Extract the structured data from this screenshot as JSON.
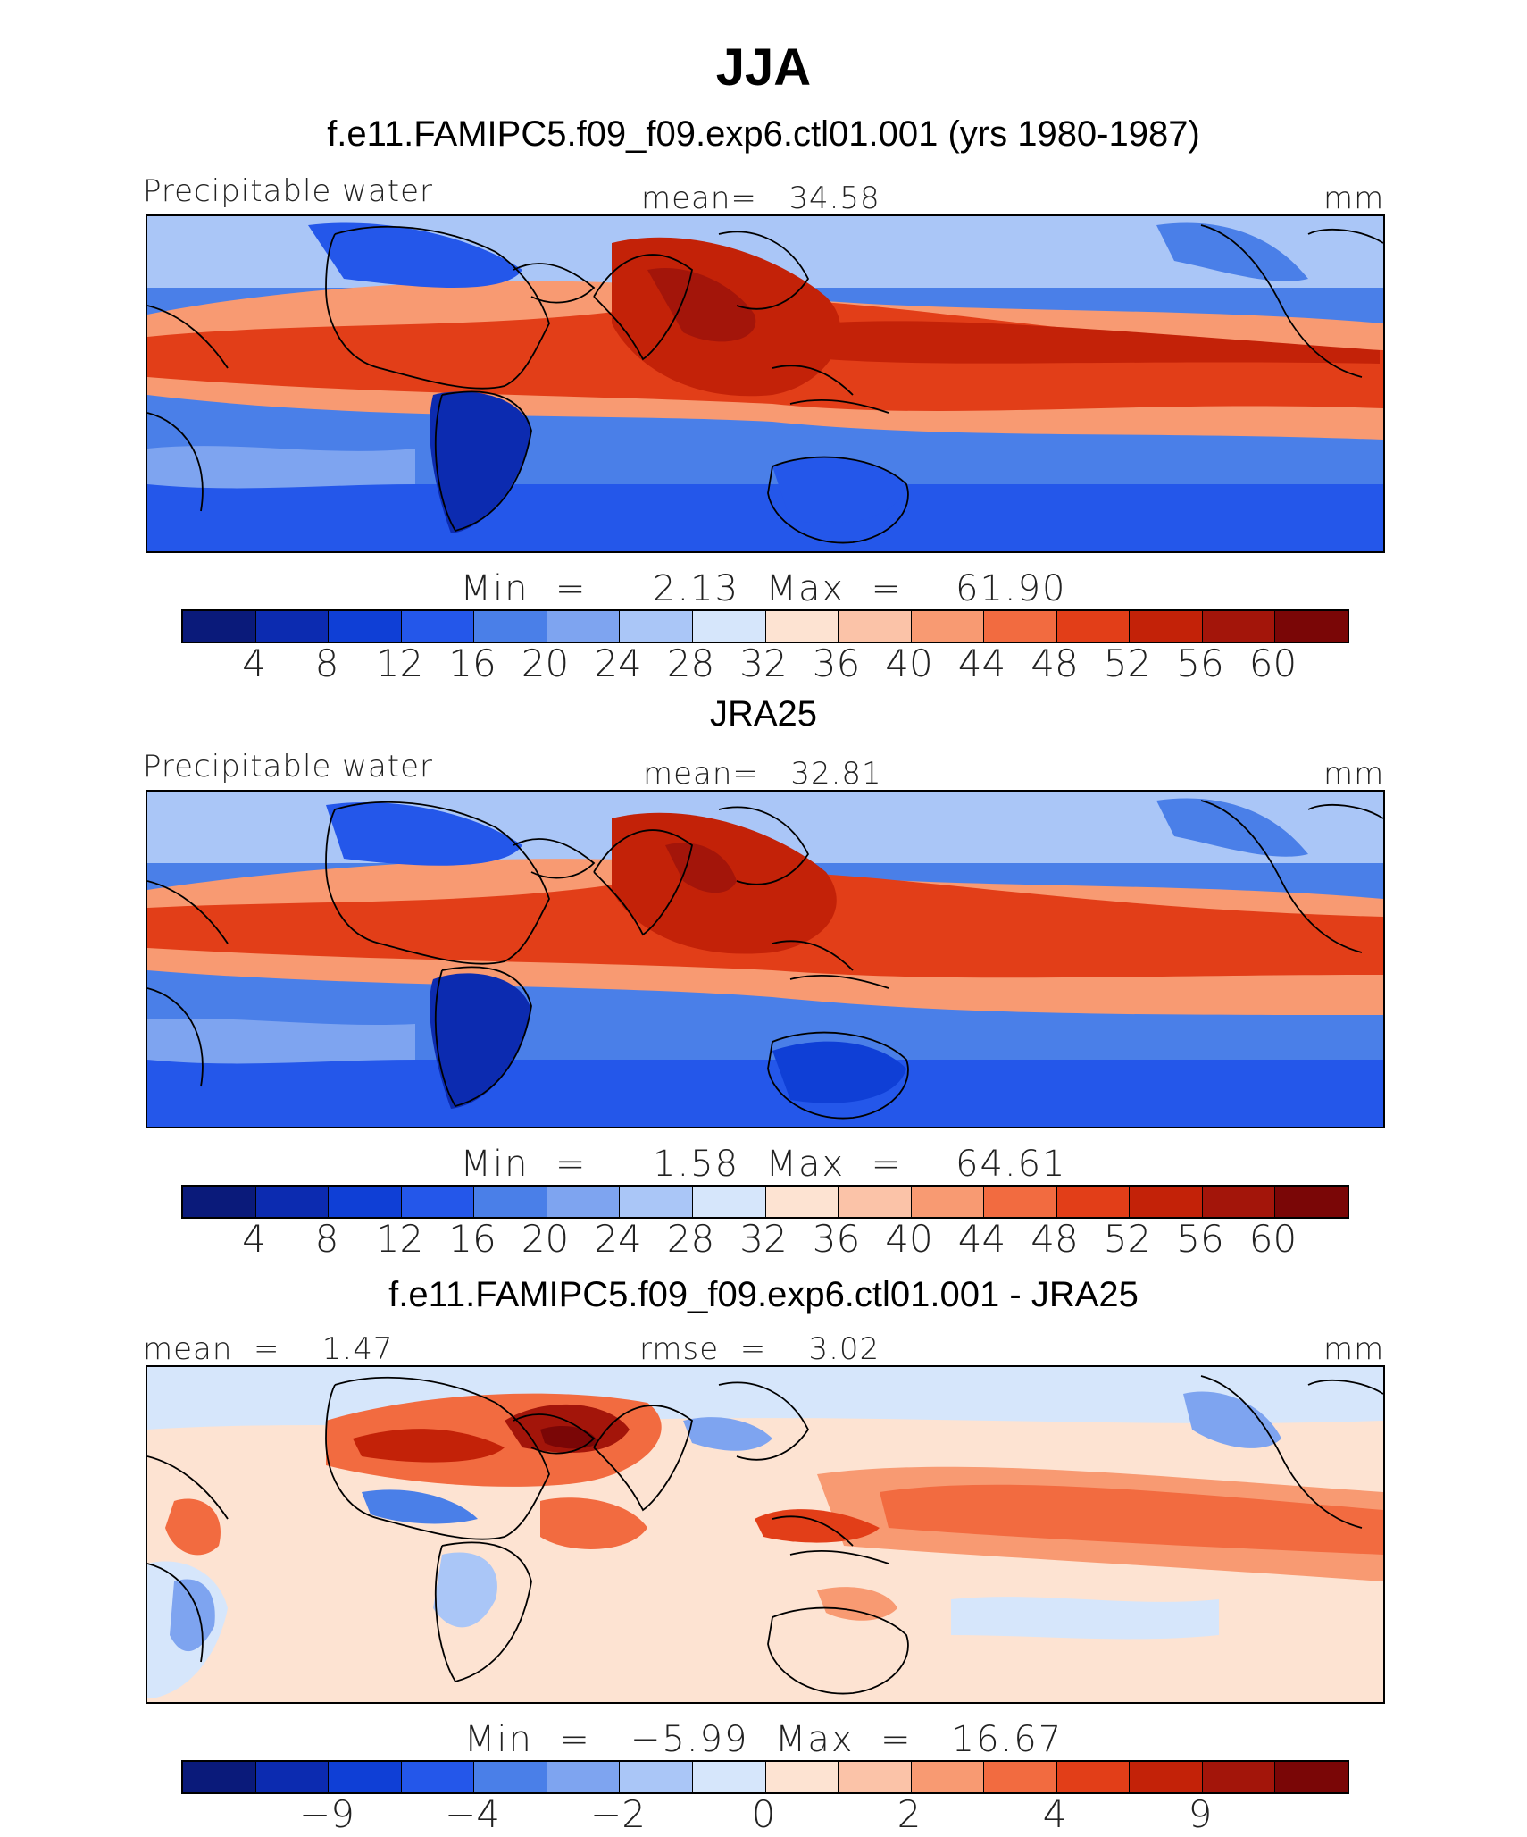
{
  "figure": {
    "title": "JJA"
  },
  "panels": [
    {
      "heading": "f.e11.FAMIPC5.f09_f09.exp6.ctl01.001 (yrs 1980-1987)",
      "left_label": "Precipitable water",
      "center_label": "mean=   34.58",
      "right_label": "mm",
      "minmax": "Min  =     2.13  Max  =    61.90",
      "type": "absolute"
    },
    {
      "heading": "JRA25",
      "left_label": "Precipitable water",
      "center_label": "mean=   32.81",
      "right_label": "mm",
      "minmax": "Min  =     1.58  Max  =    64.61",
      "type": "absolute"
    },
    {
      "heading": "f.e11.FAMIPC5.f09_f09.exp6.ctl01.001 - JRA25",
      "left_label": "mean  =    1.47",
      "center_label": "rmse  =    3.02",
      "right_label": "mm",
      "minmax": "Min  =   −5.99  Max  =   16.67",
      "type": "difference"
    }
  ],
  "colorbars": {
    "colors": [
      "#0a1a7a",
      "#0c2bb0",
      "#0f3fd6",
      "#2457ea",
      "#4a7fe8",
      "#7ea4f0",
      "#aac6f7",
      "#d6e6fb",
      "#fde3d2",
      "#fbc3a8",
      "#f89a72",
      "#f26b40",
      "#e23e18",
      "#c32208",
      "#a3150a",
      "#7a0606"
    ],
    "absolute_ticks": [
      {
        "label": "4",
        "index": 1
      },
      {
        "label": "8",
        "index": 2
      },
      {
        "label": "12",
        "index": 3
      },
      {
        "label": "16",
        "index": 4
      },
      {
        "label": "20",
        "index": 5
      },
      {
        "label": "24",
        "index": 6
      },
      {
        "label": "28",
        "index": 7
      },
      {
        "label": "32",
        "index": 8
      },
      {
        "label": "36",
        "index": 9
      },
      {
        "label": "40",
        "index": 10
      },
      {
        "label": "44",
        "index": 11
      },
      {
        "label": "48",
        "index": 12
      },
      {
        "label": "52",
        "index": 13
      },
      {
        "label": "56",
        "index": 14
      },
      {
        "label": "60",
        "index": 15
      }
    ],
    "difference_ticks": [
      {
        "label": "−9",
        "index": 2
      },
      {
        "label": "−4",
        "index": 4
      },
      {
        "label": "−2",
        "index": 6
      },
      {
        "label": "0",
        "index": 8
      },
      {
        "label": "2",
        "index": 10
      },
      {
        "label": "4",
        "index": 12
      },
      {
        "label": "9",
        "index": 14
      }
    ]
  }
}
